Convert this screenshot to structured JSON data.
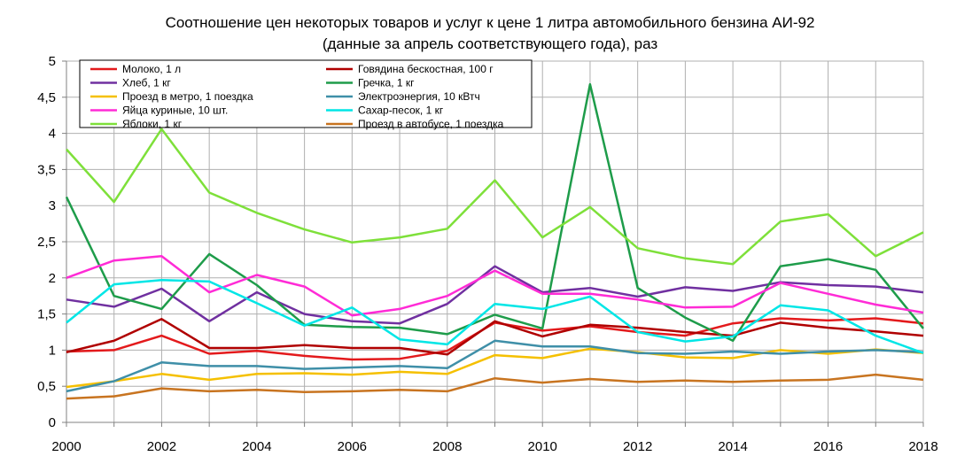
{
  "chart_data": {
    "type": "line",
    "title_line1": "Соотношение цен некоторых товаров и услуг к цене 1 литра автомобильного бензина АИ-92",
    "title_line2": "(данные за апрель соответствующего года), раз",
    "xlabel": "",
    "ylabel": "",
    "xlim": [
      2000,
      2018
    ],
    "ylim": [
      0,
      5
    ],
    "x": [
      2000,
      2001,
      2002,
      2003,
      2004,
      2005,
      2006,
      2007,
      2008,
      2009,
      2010,
      2011,
      2012,
      2013,
      2014,
      2015,
      2016,
      2017,
      2018
    ],
    "x_tick_labels": [
      "2000",
      "2002",
      "2004",
      "2006",
      "2008",
      "2010",
      "2012",
      "2014",
      "2016",
      "2018"
    ],
    "y_tick_labels": [
      "0",
      "0,5",
      "1",
      "1,5",
      "2",
      "2,5",
      "3",
      "3,5",
      "4",
      "4,5",
      "5"
    ],
    "grid": true,
    "legend_placement": "top-left",
    "series": [
      {
        "name": "Молоко, 1 л",
        "color": "#e31a1c",
        "values": [
          0.98,
          1.0,
          1.2,
          0.95,
          0.99,
          0.92,
          0.87,
          0.88,
          0.99,
          1.38,
          1.27,
          1.33,
          1.25,
          1.2,
          1.37,
          1.44,
          1.41,
          1.44,
          1.37
        ]
      },
      {
        "name": "Говядина бескостная, 100 г",
        "color": "#b00000",
        "values": [
          0.97,
          1.13,
          1.43,
          1.03,
          1.03,
          1.07,
          1.03,
          1.03,
          0.94,
          1.4,
          1.19,
          1.35,
          1.31,
          1.25,
          1.2,
          1.38,
          1.31,
          1.26,
          1.2
        ]
      },
      {
        "name": "Хлеб, 1 кг",
        "color": "#7030a0",
        "values": [
          1.7,
          1.6,
          1.85,
          1.4,
          1.8,
          1.5,
          1.4,
          1.37,
          1.64,
          2.16,
          1.8,
          1.86,
          1.74,
          1.87,
          1.82,
          1.94,
          1.9,
          1.88,
          1.8
        ]
      },
      {
        "name": "Гречка, 1 кг",
        "color": "#1e9c4a",
        "values": [
          3.12,
          1.75,
          1.57,
          2.33,
          1.9,
          1.35,
          1.32,
          1.31,
          1.22,
          1.49,
          1.3,
          4.68,
          1.86,
          1.45,
          1.13,
          2.16,
          2.26,
          2.11,
          1.3
        ]
      },
      {
        "name": "Проезд в метро, 1 поездка",
        "color": "#f5c000",
        "values": [
          0.49,
          0.57,
          0.67,
          0.59,
          0.67,
          0.68,
          0.66,
          0.7,
          0.67,
          0.93,
          0.89,
          1.02,
          0.97,
          0.9,
          0.89,
          1.0,
          0.95,
          1.01,
          0.96
        ]
      },
      {
        "name": "Электроэнергия, 10 кВтч",
        "color": "#3f8fa8",
        "values": [
          0.43,
          0.57,
          0.83,
          0.78,
          0.78,
          0.74,
          0.76,
          0.78,
          0.75,
          1.13,
          1.05,
          1.05,
          0.96,
          0.95,
          0.98,
          0.95,
          0.98,
          1.0,
          0.97
        ]
      },
      {
        "name": "Яйца куриные, 10 шт.",
        "color": "#ff2bd6",
        "values": [
          2.0,
          2.24,
          2.3,
          1.8,
          2.04,
          1.88,
          1.48,
          1.57,
          1.75,
          2.1,
          1.78,
          1.78,
          1.7,
          1.59,
          1.6,
          1.93,
          1.78,
          1.63,
          1.52
        ]
      },
      {
        "name": "Сахар-песок, 1 кг",
        "color": "#00e6e6",
        "values": [
          1.38,
          1.91,
          1.97,
          1.95,
          1.65,
          1.34,
          1.59,
          1.15,
          1.08,
          1.64,
          1.57,
          1.74,
          1.25,
          1.12,
          1.19,
          1.62,
          1.55,
          1.2,
          0.96
        ]
      },
      {
        "name": "Яблоки, 1 кг",
        "color": "#7ee03a",
        "values": [
          3.78,
          3.05,
          4.06,
          3.18,
          2.9,
          2.67,
          2.49,
          2.56,
          2.68,
          3.35,
          2.56,
          2.98,
          2.41,
          2.27,
          2.19,
          2.78,
          2.88,
          2.3,
          2.63
        ]
      },
      {
        "name": "Проезд в автобусе, 1 поездка",
        "color": "#c87420",
        "values": [
          0.33,
          0.36,
          0.47,
          0.43,
          0.45,
          0.42,
          0.43,
          0.45,
          0.43,
          0.61,
          0.55,
          0.6,
          0.56,
          0.58,
          0.56,
          0.58,
          0.59,
          0.66,
          0.59
        ]
      }
    ],
    "legend": [
      {
        "series": 0,
        "column": 0,
        "row": 0
      },
      {
        "series": 1,
        "column": 1,
        "row": 0
      },
      {
        "series": 2,
        "column": 0,
        "row": 1
      },
      {
        "series": 3,
        "column": 1,
        "row": 1
      },
      {
        "series": 4,
        "column": 0,
        "row": 2
      },
      {
        "series": 5,
        "column": 1,
        "row": 2
      },
      {
        "series": 6,
        "column": 0,
        "row": 3
      },
      {
        "series": 7,
        "column": 1,
        "row": 3
      },
      {
        "series": 8,
        "column": 0,
        "row": 4
      },
      {
        "series": 9,
        "column": 1,
        "row": 4
      }
    ]
  }
}
